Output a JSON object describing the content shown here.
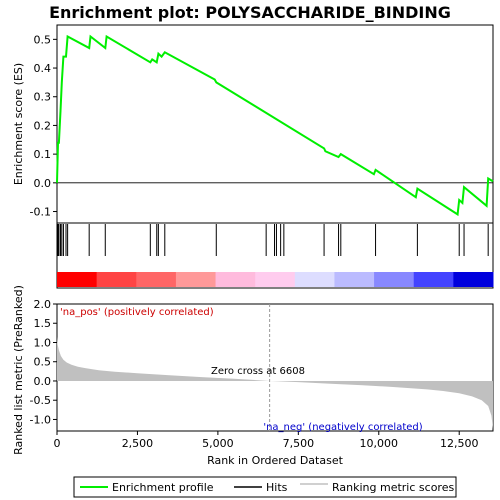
{
  "chart_data": {
    "type": "line",
    "title": "Enrichment plot: POLYSACCHARIDE_BINDING",
    "top_panel": {
      "ylabel": "Enrichment score (ES)",
      "ylim": [
        -0.14,
        0.55
      ],
      "yticks": [
        -0.1,
        0.0,
        0.1,
        0.2,
        0.3,
        0.4,
        0.5
      ],
      "ytick_labels": [
        "-0.1",
        "0.0",
        "0.1",
        "0.2",
        "0.3",
        "0.4",
        "0.5"
      ],
      "series": [
        {
          "name": "Enrichment profile",
          "color": "#00ee00",
          "x": [
            0,
            30,
            60,
            110,
            150,
            200,
            280,
            330,
            1000,
            1040,
            1500,
            1540,
            2900,
            2960,
            3100,
            3150,
            3250,
            3350,
            4900,
            4950,
            8300,
            8340,
            8750,
            8820,
            9850,
            9900,
            11150,
            11200,
            12450,
            12500,
            12600,
            12650,
            13350,
            13400,
            13550
          ],
          "y": [
            0.0,
            0.14,
            0.14,
            0.25,
            0.35,
            0.44,
            0.44,
            0.51,
            0.47,
            0.51,
            0.47,
            0.51,
            0.42,
            0.43,
            0.42,
            0.45,
            0.44,
            0.455,
            0.36,
            0.35,
            0.12,
            0.11,
            0.09,
            0.1,
            0.03,
            0.045,
            -0.05,
            -0.02,
            -0.11,
            -0.06,
            -0.07,
            -0.015,
            -0.08,
            0.015,
            0.005
          ]
        }
      ]
    },
    "hits": [
      30,
      60,
      110,
      150,
      200,
      280,
      330,
      1000,
      1500,
      2900,
      3100,
      3150,
      3350,
      4950,
      6500,
      6760,
      6820,
      6950,
      7050,
      8300,
      8750,
      8820,
      9900,
      11200,
      12500,
      12650,
      13400
    ],
    "heat_colors": [
      "#ff0000",
      "#ff4444",
      "#ff6666",
      "#ff9999",
      "#ffbbdd",
      "#ffccee",
      "#ddddff",
      "#bbbbff",
      "#8888ff",
      "#4444ff",
      "#0000dd"
    ],
    "bottom_panel": {
      "ylabel": "Ranked list metric (PreRanked)",
      "xlabel": "Rank in Ordered Dataset",
      "ylim": [
        -1.3,
        2.0
      ],
      "yticks": [
        -1.0,
        -0.5,
        0.0,
        0.5,
        1.0,
        1.5,
        2.0
      ],
      "ytick_labels": [
        "-1.0",
        "-0.5",
        "0.0",
        "0.5",
        "1.0",
        "1.5",
        "2.0"
      ],
      "metric_x": [
        0,
        20,
        60,
        120,
        200,
        300,
        450,
        650,
        900,
        1300,
        1800,
        2500,
        3500,
        4500,
        5500,
        6608,
        7500,
        8500,
        9500,
        10500,
        11500,
        12000,
        12500,
        12900,
        13200,
        13400,
        13500,
        13550
      ],
      "metric_y": [
        1.15,
        0.95,
        0.8,
        0.65,
        0.55,
        0.48,
        0.42,
        0.37,
        0.33,
        0.28,
        0.24,
        0.2,
        0.15,
        0.1,
        0.06,
        0.0,
        -0.03,
        -0.07,
        -0.11,
        -0.16,
        -0.22,
        -0.26,
        -0.32,
        -0.4,
        -0.5,
        -0.65,
        -0.9,
        -1.25
      ],
      "zero_cross_rank": 6608,
      "zero_cross_label": "Zero cross at 6608",
      "pos_label": "'na_pos' (positively correlated)",
      "neg_label": "'na_neg' (negatively correlated)",
      "pos_color": "#cc0000",
      "neg_color": "#0000cc"
    },
    "xlim": [
      0,
      13550
    ],
    "xticks": [
      0,
      2500,
      5000,
      7500,
      10000,
      12500
    ],
    "xtick_labels": [
      "0",
      "2,500",
      "5,000",
      "7,500",
      "10,000",
      "12,500"
    ],
    "legend": {
      "placement": "bottom",
      "entries": [
        {
          "label": "Enrichment profile",
          "color": "#00ee00"
        },
        {
          "label": "Hits",
          "color": "#000000"
        },
        {
          "label": "Ranking metric scores",
          "color": "#c0c0c0"
        }
      ]
    }
  }
}
